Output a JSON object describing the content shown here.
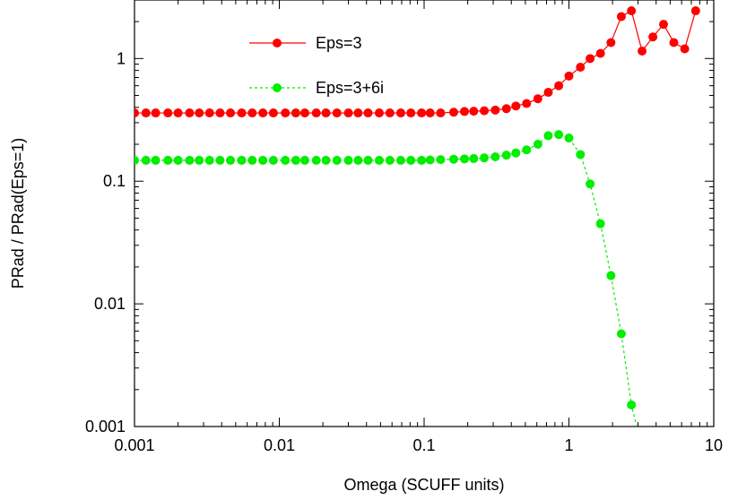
{
  "chart_data": {
    "type": "line",
    "title": "",
    "xlabel": "Omega (SCUFF units)",
    "ylabel": "PRad / PRad(Eps=1)",
    "xscale": "log",
    "yscale": "log",
    "xlim": [
      0.001,
      10
    ],
    "ylim": [
      0.001,
      3
    ],
    "grid": false,
    "legend_position": "top-left",
    "x_ticks": [
      {
        "value": 0.001,
        "label": "0.001"
      },
      {
        "value": 0.01,
        "label": "0.01"
      },
      {
        "value": 0.1,
        "label": "0.1"
      },
      {
        "value": 1,
        "label": "1"
      },
      {
        "value": 10,
        "label": "10"
      }
    ],
    "y_ticks": [
      {
        "value": 0.001,
        "label": "0.001"
      },
      {
        "value": 0.01,
        "label": "0.01"
      },
      {
        "value": 0.1,
        "label": "0.1"
      },
      {
        "value": 1,
        "label": "1"
      }
    ],
    "series": [
      {
        "name": "Eps=3",
        "color": "#ff0000",
        "line_style": "solid",
        "marker": "circle",
        "points": [
          [
            0.001,
            0.36
          ],
          [
            0.0012,
            0.36
          ],
          [
            0.0014,
            0.36
          ],
          [
            0.0017,
            0.36
          ],
          [
            0.002,
            0.36
          ],
          [
            0.0024,
            0.36
          ],
          [
            0.0028,
            0.36
          ],
          [
            0.0033,
            0.36
          ],
          [
            0.0039,
            0.36
          ],
          [
            0.0046,
            0.36
          ],
          [
            0.0055,
            0.36
          ],
          [
            0.0065,
            0.36
          ],
          [
            0.0077,
            0.36
          ],
          [
            0.0091,
            0.36
          ],
          [
            0.011,
            0.36
          ],
          [
            0.013,
            0.36
          ],
          [
            0.015,
            0.36
          ],
          [
            0.018,
            0.36
          ],
          [
            0.021,
            0.36
          ],
          [
            0.025,
            0.36
          ],
          [
            0.03,
            0.36
          ],
          [
            0.035,
            0.36
          ],
          [
            0.041,
            0.36
          ],
          [
            0.049,
            0.36
          ],
          [
            0.058,
            0.36
          ],
          [
            0.069,
            0.36
          ],
          [
            0.081,
            0.36
          ],
          [
            0.096,
            0.36
          ],
          [
            0.11,
            0.36
          ],
          [
            0.13,
            0.36
          ],
          [
            0.16,
            0.365
          ],
          [
            0.19,
            0.37
          ],
          [
            0.22,
            0.372
          ],
          [
            0.26,
            0.375
          ],
          [
            0.31,
            0.38
          ],
          [
            0.37,
            0.39
          ],
          [
            0.43,
            0.41
          ],
          [
            0.51,
            0.43
          ],
          [
            0.61,
            0.47
          ],
          [
            0.72,
            0.53
          ],
          [
            0.85,
            0.6
          ],
          [
            1.0,
            0.72
          ],
          [
            1.2,
            0.85
          ],
          [
            1.4,
            1.0
          ],
          [
            1.65,
            1.1
          ],
          [
            1.95,
            1.35
          ],
          [
            2.3,
            2.2
          ],
          [
            2.7,
            2.45
          ],
          [
            3.2,
            1.15
          ],
          [
            3.8,
            1.5
          ],
          [
            4.5,
            1.9
          ],
          [
            5.3,
            1.35
          ],
          [
            6.3,
            1.2
          ],
          [
            7.5,
            2.45
          ]
        ]
      },
      {
        "name": "Eps=3+6i",
        "color": "#00ee00",
        "line_style": "dashed",
        "marker": "circle",
        "points": [
          [
            0.001,
            0.148
          ],
          [
            0.0012,
            0.148
          ],
          [
            0.0014,
            0.148
          ],
          [
            0.0017,
            0.148
          ],
          [
            0.002,
            0.148
          ],
          [
            0.0024,
            0.148
          ],
          [
            0.0028,
            0.148
          ],
          [
            0.0033,
            0.148
          ],
          [
            0.0039,
            0.148
          ],
          [
            0.0046,
            0.148
          ],
          [
            0.0055,
            0.148
          ],
          [
            0.0065,
            0.148
          ],
          [
            0.0077,
            0.148
          ],
          [
            0.0091,
            0.148
          ],
          [
            0.011,
            0.148
          ],
          [
            0.013,
            0.148
          ],
          [
            0.015,
            0.148
          ],
          [
            0.018,
            0.148
          ],
          [
            0.021,
            0.148
          ],
          [
            0.025,
            0.148
          ],
          [
            0.03,
            0.148
          ],
          [
            0.035,
            0.148
          ],
          [
            0.041,
            0.148
          ],
          [
            0.049,
            0.148
          ],
          [
            0.058,
            0.148
          ],
          [
            0.069,
            0.148
          ],
          [
            0.081,
            0.148
          ],
          [
            0.096,
            0.148
          ],
          [
            0.11,
            0.149
          ],
          [
            0.13,
            0.15
          ],
          [
            0.16,
            0.151
          ],
          [
            0.19,
            0.152
          ],
          [
            0.22,
            0.153
          ],
          [
            0.26,
            0.155
          ],
          [
            0.31,
            0.158
          ],
          [
            0.37,
            0.163
          ],
          [
            0.43,
            0.17
          ],
          [
            0.51,
            0.18
          ],
          [
            0.61,
            0.2
          ],
          [
            0.72,
            0.235
          ],
          [
            0.85,
            0.24
          ],
          [
            1.0,
            0.225
          ],
          [
            1.2,
            0.165
          ],
          [
            1.4,
            0.095
          ],
          [
            1.65,
            0.045
          ],
          [
            1.95,
            0.017
          ],
          [
            2.3,
            0.0057
          ],
          [
            2.7,
            0.0015
          ],
          [
            3.0,
            0.0009
          ]
        ]
      }
    ]
  }
}
